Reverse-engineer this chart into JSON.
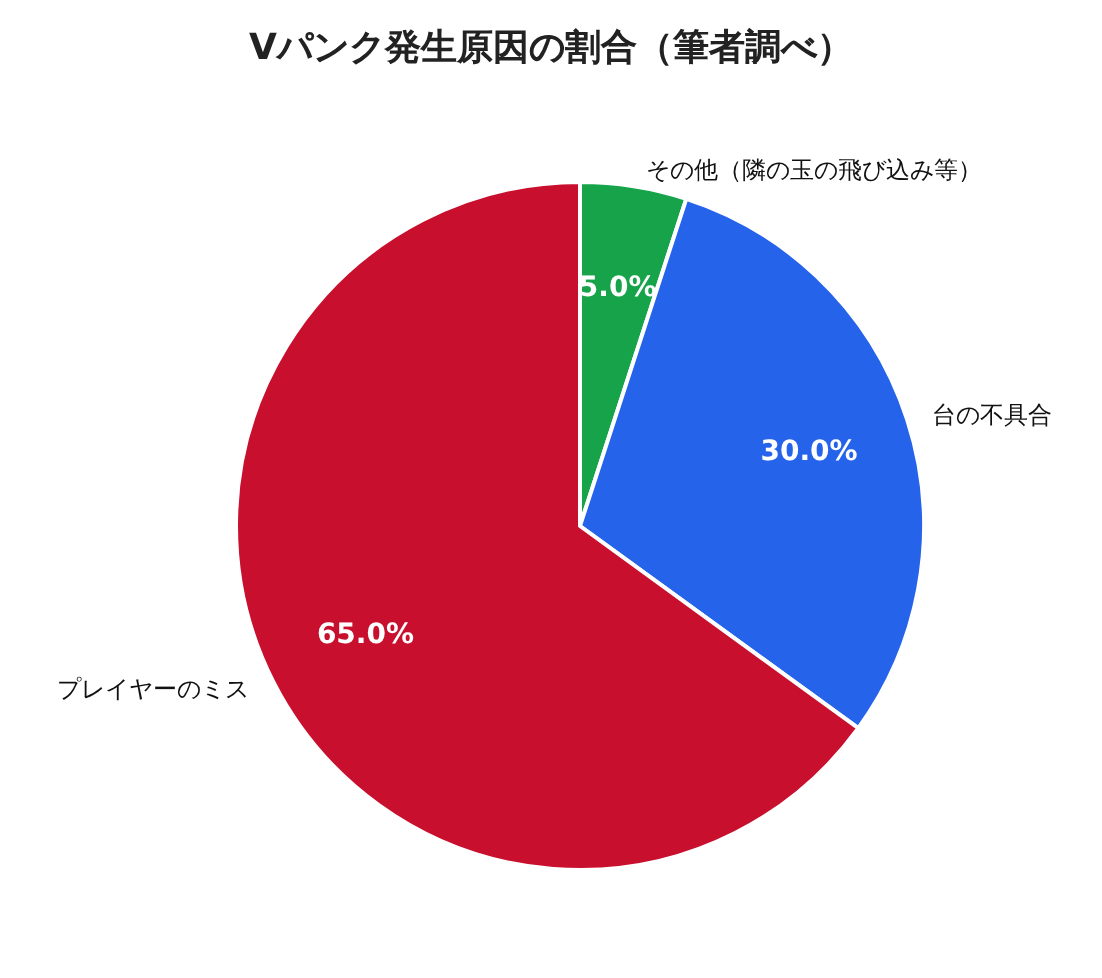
{
  "chart_data": {
    "type": "pie",
    "title": "Vパンク発生原因の割合（筆者調べ）",
    "categories": [
      "その他（隣の玉の飛び込み等）",
      "台の不具合",
      "プレイヤーのミス"
    ],
    "values": [
      5,
      30,
      65
    ],
    "value_labels": [
      "5.0%",
      "30.0%",
      "65.0%"
    ],
    "colors": [
      "#16a34a",
      "#2563eb",
      "#c8102e"
    ],
    "legend": false
  }
}
